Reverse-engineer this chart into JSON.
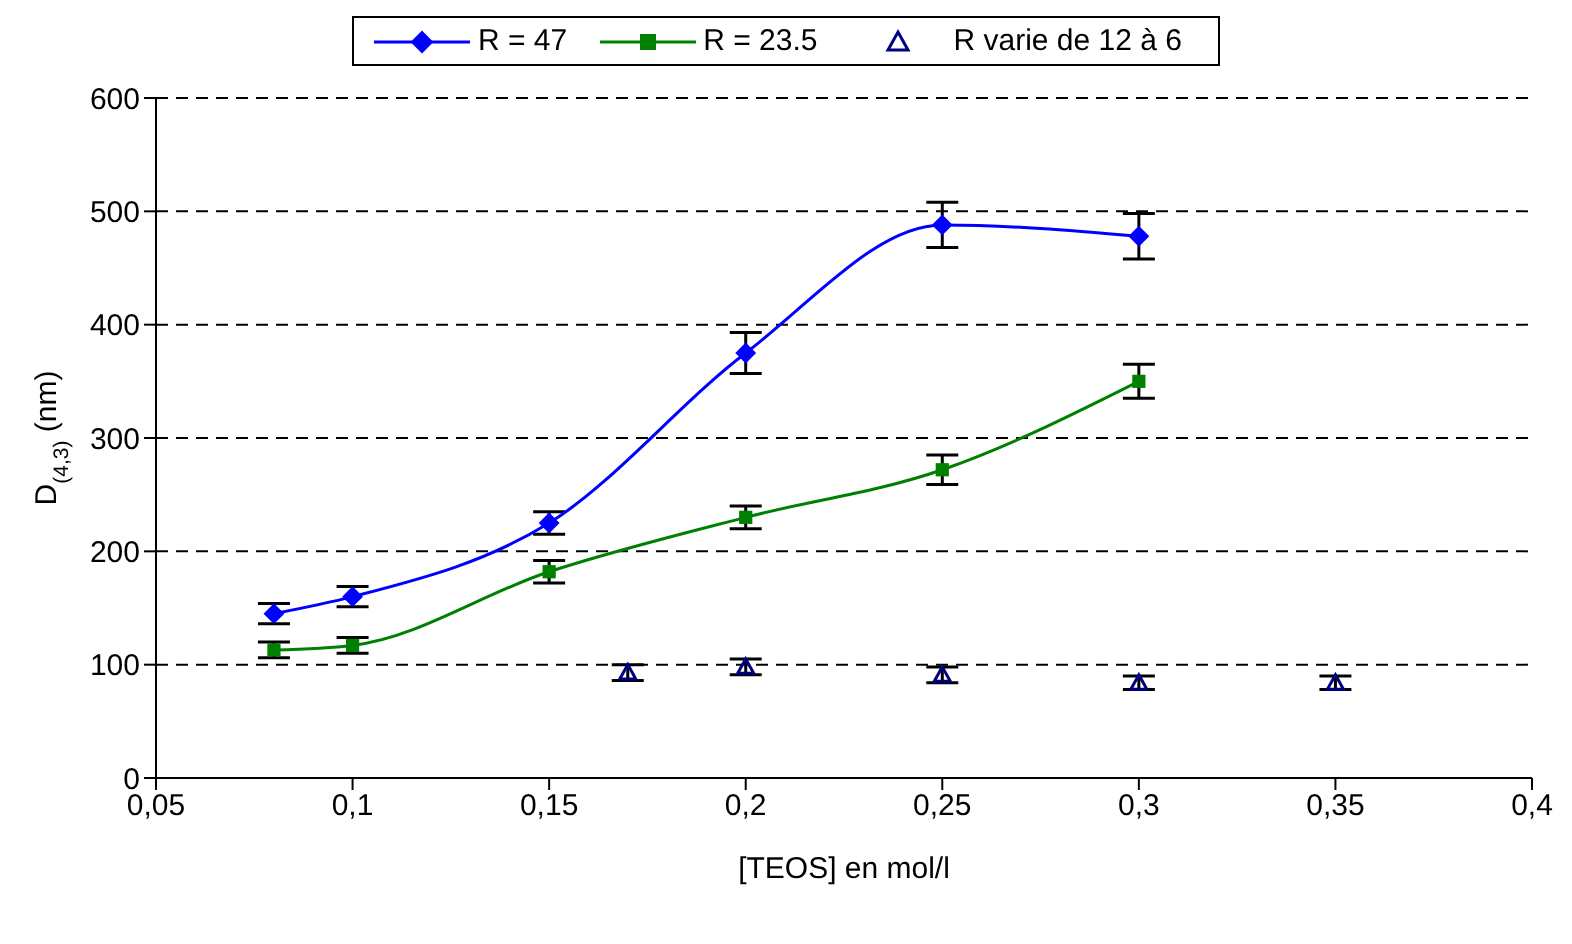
{
  "chart_data": {
    "type": "line",
    "xlabel": "[TEOS] en mol/l",
    "ylabel": "D$_{(4,3)}$ (nm)",
    "xlim": [
      0.05,
      0.4
    ],
    "xticks": [
      {
        "value": 0.05,
        "label": "0,05"
      },
      {
        "value": 0.1,
        "label": "0,1"
      },
      {
        "value": 0.15,
        "label": "0,15"
      },
      {
        "value": 0.2,
        "label": "0,2"
      },
      {
        "value": 0.25,
        "label": "0,25"
      },
      {
        "value": 0.3,
        "label": "0,3"
      },
      {
        "value": 0.35,
        "label": "0,35"
      },
      {
        "value": 0.4,
        "label": "0,4"
      }
    ],
    "ylim": [
      0,
      600
    ],
    "yticks": [
      0,
      100,
      200,
      300,
      400,
      500,
      600
    ],
    "grid": "y",
    "legend": "top",
    "series": [
      {
        "name": "R = 47",
        "color": "#0000ff",
        "marker": "diamond",
        "x": [
          0.08,
          0.1,
          0.15,
          0.2,
          0.25,
          0.3
        ],
        "values": [
          145,
          160,
          225,
          375,
          488,
          478
        ],
        "errors": [
          9,
          9,
          10,
          18,
          20,
          20
        ]
      },
      {
        "name": "R = 23.5",
        "color": "#008000",
        "marker": "square",
        "x": [
          0.08,
          0.1,
          0.15,
          0.2,
          0.25,
          0.3
        ],
        "values": [
          113,
          117,
          182,
          230,
          272,
          350
        ],
        "errors": [
          7,
          7,
          10,
          10,
          13,
          15
        ]
      },
      {
        "name": "R varie de 12 à 6",
        "type": "scatter",
        "color": "#000080",
        "marker": "triangle",
        "x": [
          0.17,
          0.2,
          0.25,
          0.3,
          0.35
        ],
        "values": [
          93,
          98,
          91,
          84,
          84
        ],
        "errors": [
          7,
          7,
          7,
          6,
          6
        ]
      }
    ]
  }
}
